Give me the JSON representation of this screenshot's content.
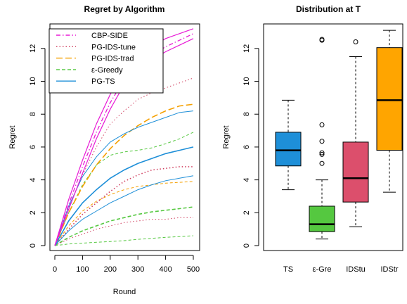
{
  "chart_data": [
    {
      "type": "line",
      "title": "Regret by Algorithm",
      "xlabel": "Round",
      "ylabel": "Regret",
      "xlim": [
        0,
        500
      ],
      "ylim": [
        0,
        13
      ],
      "xticks": [
        "0",
        "100",
        "200",
        "300",
        "400",
        "500"
      ],
      "yticks": [
        "0",
        "2",
        "4",
        "6",
        "8",
        "10",
        "12"
      ],
      "grid": false,
      "legend_position": "top-left",
      "x": [
        0,
        50,
        100,
        150,
        200,
        250,
        300,
        350,
        400,
        450,
        500
      ],
      "series": [
        {
          "name": "CBP-SIDE",
          "color": "#e81ad6",
          "dash": "dashdot",
          "values": [
            0,
            2.5,
            4.8,
            6.9,
            8.7,
            10.1,
            11.0,
            11.6,
            12.1,
            12.5,
            12.9
          ],
          "lower": [
            0,
            2.2,
            4.4,
            6.5,
            8.3,
            9.8,
            10.7,
            11.3,
            11.8,
            12.2,
            12.6
          ],
          "upper": [
            0,
            2.8,
            5.2,
            7.4,
            9.2,
            10.6,
            11.5,
            12.1,
            12.6,
            12.9,
            13.2
          ]
        },
        {
          "name": "PG-IDS-tune",
          "color": "#d04060",
          "dash": "dotted",
          "values": [
            0,
            1.0,
            1.9,
            2.6,
            3.3,
            3.9,
            4.3,
            4.6,
            4.7,
            4.8,
            4.8
          ],
          "upper": [
            0,
            2.3,
            4.3,
            6.0,
            7.4,
            8.2,
            8.9,
            9.3,
            9.6,
            9.9,
            10.2
          ],
          "lower": [
            0,
            0.4,
            0.7,
            1.0,
            1.2,
            1.4,
            1.5,
            1.6,
            1.6,
            1.7,
            1.7
          ]
        },
        {
          "name": "PG-IDS-trad",
          "color": "#f5a000",
          "dash": "dashed",
          "values": [
            0,
            2.0,
            3.6,
            4.9,
            5.9,
            6.7,
            7.3,
            7.8,
            8.2,
            8.5,
            8.6
          ],
          "lower": [
            0,
            1.2,
            2.1,
            2.7,
            3.1,
            3.4,
            3.6,
            3.7,
            3.8,
            3.85,
            3.9
          ]
        },
        {
          "name": "ε-Greedy",
          "color": "#55c840",
          "dash": "dashed2",
          "values": [
            0,
            0.5,
            0.9,
            1.2,
            1.5,
            1.7,
            1.9,
            2.05,
            2.15,
            2.25,
            2.35
          ],
          "upper": [
            0,
            2.0,
            3.7,
            4.9,
            5.5,
            5.7,
            5.8,
            5.95,
            6.2,
            6.5,
            6.9
          ],
          "lower": [
            0,
            0.1,
            0.15,
            0.2,
            0.25,
            0.3,
            0.38,
            0.44,
            0.5,
            0.55,
            0.6
          ]
        },
        {
          "name": "PG-TS",
          "color": "#1e8fd8",
          "dash": "solid",
          "values": [
            0,
            1.5,
            2.6,
            3.4,
            4.1,
            4.6,
            5.0,
            5.3,
            5.6,
            5.8,
            6.0
          ],
          "upper": [
            0,
            2.4,
            4.2,
            5.4,
            6.3,
            6.8,
            7.2,
            7.5,
            7.8,
            8.1,
            8.2
          ],
          "lower": [
            0,
            0.9,
            1.6,
            2.1,
            2.6,
            3.0,
            3.4,
            3.7,
            3.95,
            4.1,
            4.25
          ]
        }
      ]
    },
    {
      "type": "box",
      "title": "Distribution at T",
      "ylabel": "Regret",
      "ylim": [
        0,
        13
      ],
      "yticks": [
        "0",
        "2",
        "4",
        "6",
        "8",
        "10",
        "12"
      ],
      "categories": [
        "TS",
        "ε-Gre",
        "IDStu",
        "IDStr"
      ],
      "boxes": [
        {
          "color": "#1e8fd8",
          "whislo": 3.4,
          "q1": 4.85,
          "med": 5.8,
          "q3": 6.9,
          "whishi": 8.85,
          "outliers": []
        },
        {
          "color": "#55c840",
          "whislo": 0.4,
          "q1": 0.85,
          "med": 1.3,
          "q3": 2.4,
          "whishi": 4.0,
          "outliers": [
            5.0,
            5.55,
            5.65,
            6.35,
            7.35,
            12.5,
            12.55
          ]
        },
        {
          "color": "#dc4f6c",
          "whislo": 1.15,
          "q1": 2.65,
          "med": 4.1,
          "q3": 6.3,
          "whishi": 11.5,
          "outliers": [
            12.4
          ]
        },
        {
          "color": "#ffa500",
          "whislo": 3.25,
          "q1": 5.8,
          "med": 8.85,
          "q3": 12.05,
          "whishi": 13.1,
          "outliers": []
        }
      ]
    }
  ]
}
